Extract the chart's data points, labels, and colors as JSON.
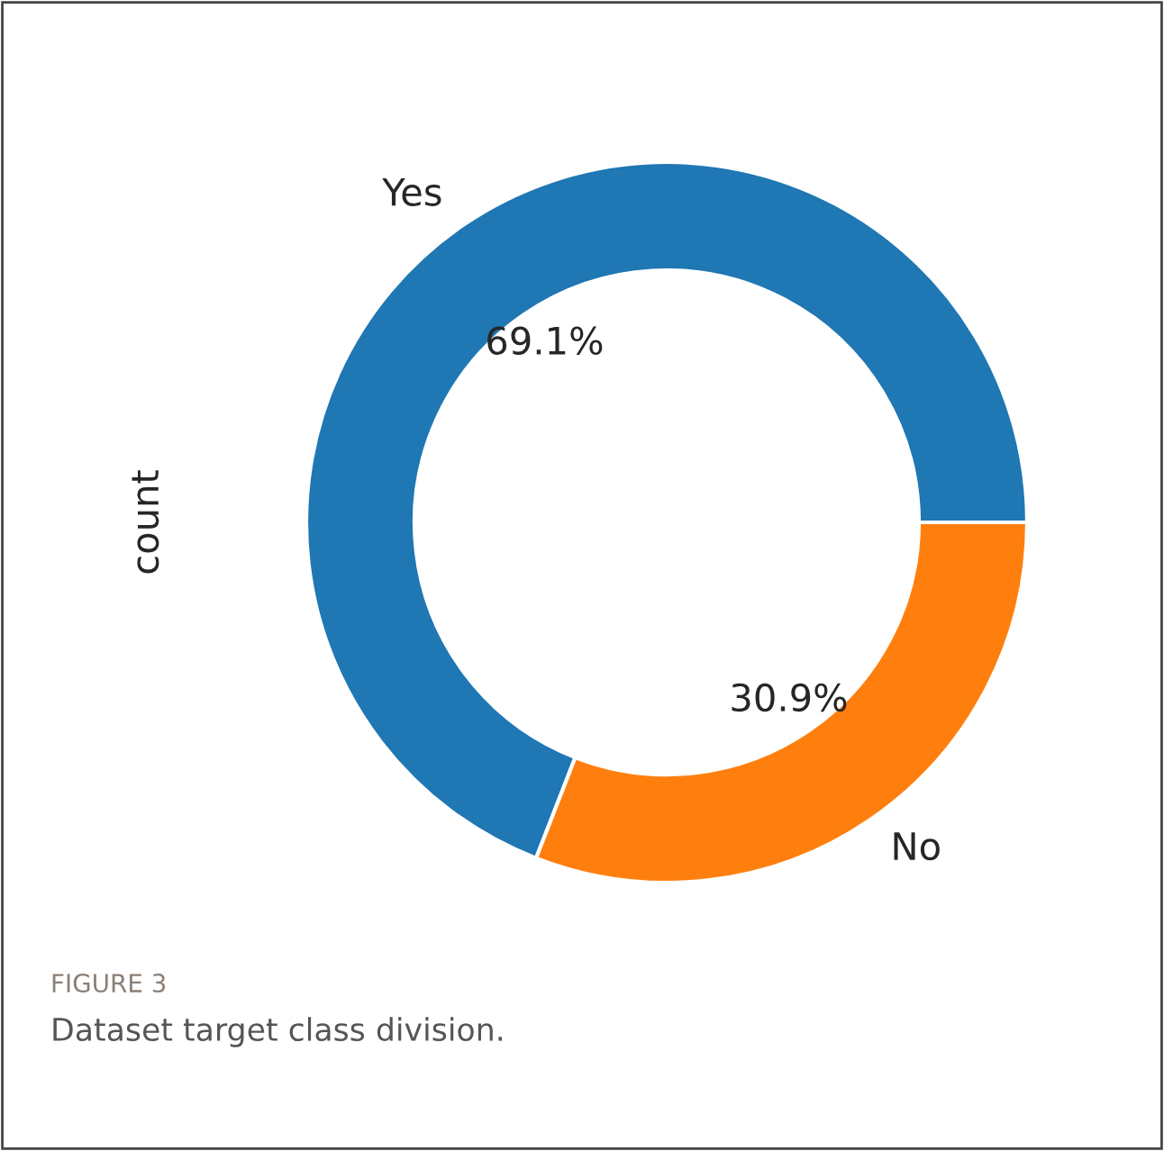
{
  "chart_data": {
    "type": "donut",
    "ylabel": "count",
    "categories": [
      "Yes",
      "No"
    ],
    "values": [
      69.1,
      30.9
    ],
    "colors": [
      "#1f77b4",
      "#ff7f0e"
    ],
    "value_labels": [
      "69.1%",
      "30.9%"
    ],
    "annotations": [
      "FIGURE 3",
      "Dataset target class division."
    ],
    "legend": false
  }
}
